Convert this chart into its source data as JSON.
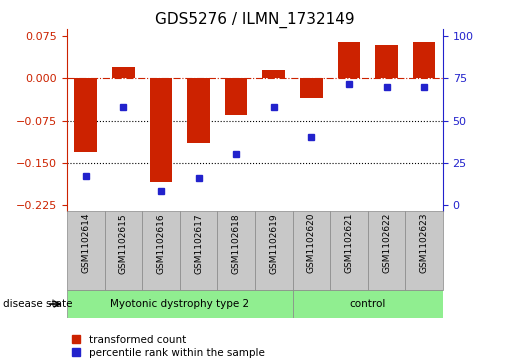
{
  "title": "GDS5276 / ILMN_1732149",
  "samples": [
    "GSM1102614",
    "GSM1102615",
    "GSM1102616",
    "GSM1102617",
    "GSM1102618",
    "GSM1102619",
    "GSM1102620",
    "GSM1102621",
    "GSM1102622",
    "GSM1102623"
  ],
  "bar_values": [
    -0.13,
    0.02,
    -0.185,
    -0.115,
    -0.065,
    0.015,
    -0.035,
    0.065,
    0.06,
    0.065
  ],
  "percentile_values": [
    17,
    58,
    8,
    16,
    30,
    58,
    40,
    72,
    70,
    70
  ],
  "bar_color": "#cc2200",
  "percentile_color": "#2222cc",
  "ylim_left": [
    -0.235,
    0.088
  ],
  "ylim_right": [
    -0.235,
    0.088
  ],
  "yticks_left": [
    0.075,
    0,
    -0.075,
    -0.15,
    -0.225
  ],
  "yticks_right_vals": [
    100,
    75,
    50,
    25,
    0
  ],
  "yticks_right_pos": [
    0.075,
    0,
    -0.075,
    -0.15,
    -0.225
  ],
  "dotted_lines": [
    -0.075,
    -0.15
  ],
  "n_samples": 10,
  "n_disease": 6,
  "n_control": 4,
  "group1_label": "Myotonic dystrophy type 2",
  "group2_label": "control",
  "group_color": "#90EE90",
  "sample_box_color": "#C8C8C8",
  "disease_state_label": "disease state",
  "legend_red_label": "transformed count",
  "legend_blue_label": "percentile rank within the sample",
  "bar_width": 0.6,
  "xlim": [
    -0.5,
    9.5
  ]
}
